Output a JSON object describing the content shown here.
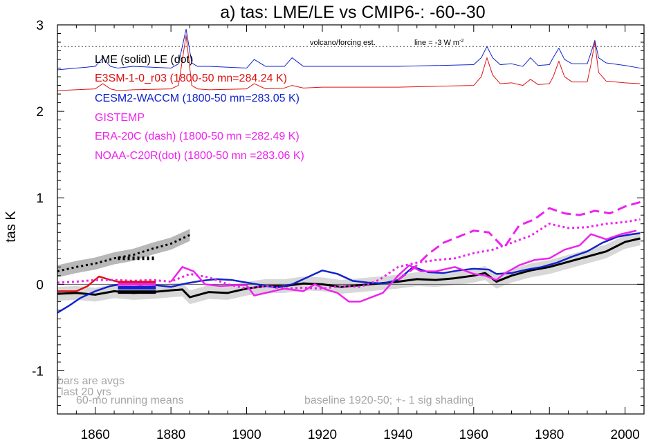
{
  "chart_data": {
    "type": "line",
    "title": "a) tas: LME/LE vs CMIP6-: -60--30",
    "xlabel": "",
    "ylabel": "tas K",
    "xlim": [
      1850,
      2005
    ],
    "ylim": [
      -1.5,
      3.0
    ],
    "x_ticks": [
      1860,
      1880,
      1900,
      1920,
      1940,
      1960,
      1980,
      2000
    ],
    "y_ticks": [
      -1,
      0,
      1,
      2,
      3
    ],
    "x_tick_labels": [
      "1860",
      "1880",
      "1900",
      "1920",
      "1940",
      "1960",
      "1980",
      "2000"
    ],
    "y_tick_labels": [
      "-1",
      "0",
      "1",
      "2",
      "3"
    ],
    "grid": false,
    "legend": {
      "placement": "top-left",
      "entries": [
        {
          "text": "LME (solid)   LE (dot)",
          "color": "#000000"
        },
        {
          "text": "E3SM-1-0_r03 (1800-50 mn=284.24 K)",
          "color": "#dd1111"
        },
        {
          "text": "CESM2-WACCM (1800-50 mn=283.05 K)",
          "color": "#1122cc"
        },
        {
          "text": "GISTEMP",
          "color": "#ee22ee"
        },
        {
          "text": "ERA-20C (dash) (1800-50 mn =282.49 K)",
          "color": "#ee22ee"
        },
        {
          "text": "NOAA-C20R(dot) (1800-50 mn =283.06 K)",
          "color": "#ee22ee"
        }
      ]
    },
    "annotations": {
      "volcano": "volcano/forcing est.",
      "line_note_prefix": "line = -3 W m",
      "line_note_sup": "-2",
      "bars_note": [
        "bars are avgs",
        "last 20 yrs"
      ],
      "running_note": "60-mo running means",
      "baseline_note": "baseline 1920-50; +- 1 sig shading"
    },
    "reference_lines": {
      "zero": 0,
      "volcano_line": 2.75
    },
    "series": [
      {
        "name": "LME (solid)",
        "color": "#000000",
        "style": "solid",
        "width": 3,
        "x": [
          1850,
          1855,
          1860,
          1865,
          1870,
          1875,
          1880,
          1883,
          1885,
          1890,
          1895,
          1900,
          1905,
          1910,
          1915,
          1920,
          1925,
          1930,
          1935,
          1940,
          1945,
          1950,
          1955,
          1960,
          1963,
          1966,
          1970,
          1975,
          1980,
          1985,
          1990,
          1995,
          2000,
          2004
        ],
        "y": [
          -0.11,
          -0.1,
          -0.12,
          -0.08,
          -0.1,
          -0.09,
          -0.07,
          -0.06,
          -0.15,
          -0.09,
          -0.1,
          -0.05,
          -0.02,
          -0.02,
          0.01,
          0.0,
          -0.03,
          -0.01,
          0.01,
          0.03,
          0.06,
          0.05,
          0.07,
          0.1,
          0.13,
          0.03,
          0.1,
          0.16,
          0.2,
          0.26,
          0.32,
          0.38,
          0.49,
          0.53
        ]
      },
      {
        "name": "LE (dot)",
        "color": "#000000",
        "style": "dot",
        "width": 3,
        "x": [
          1850,
          1855,
          1860,
          1865,
          1870,
          1875,
          1880,
          1885
        ],
        "y": [
          0.15,
          0.2,
          0.24,
          0.3,
          0.34,
          0.41,
          0.47,
          0.57
        ]
      },
      {
        "name": "E3SM-1-0_r03",
        "color": "#dd1111",
        "style": "solid",
        "width": 2.5,
        "x": [
          1850,
          1855,
          1858,
          1861,
          1864,
          1868,
          1872,
          1875
        ],
        "y": [
          -0.08,
          -0.08,
          -0.02,
          0.09,
          0.05,
          0.01,
          -0.01,
          0.01
        ]
      },
      {
        "name": "CESM2-WACCM",
        "color": "#1122cc",
        "style": "solid",
        "width": 2.5,
        "x": [
          1850,
          1853,
          1856,
          1860,
          1864,
          1868,
          1872,
          1876,
          1880,
          1884,
          1888,
          1892,
          1896,
          1900,
          1904,
          1908,
          1912,
          1916,
          1920,
          1924,
          1928,
          1932,
          1936,
          1940,
          1944,
          1948,
          1952,
          1956,
          1960,
          1964,
          1966,
          1970,
          1974,
          1978,
          1982,
          1986,
          1990,
          1994,
          1998,
          2002,
          2004
        ],
        "y": [
          -0.33,
          -0.25,
          -0.16,
          -0.08,
          -0.02,
          0.01,
          0.0,
          -0.01,
          -0.03,
          0.01,
          0.04,
          0.06,
          0.05,
          0.02,
          -0.01,
          -0.04,
          0.0,
          0.08,
          0.16,
          0.12,
          0.04,
          0.02,
          0.01,
          0.05,
          0.2,
          0.14,
          0.13,
          0.16,
          0.18,
          0.17,
          0.12,
          0.13,
          0.17,
          0.2,
          0.25,
          0.32,
          0.38,
          0.48,
          0.55,
          0.58,
          0.59
        ]
      },
      {
        "name": "GISTEMP",
        "color": "#ee22ee",
        "style": "solid",
        "width": 2.5,
        "x": [
          1880,
          1883,
          1886,
          1889,
          1893,
          1897,
          1900,
          1902,
          1905,
          1910,
          1915,
          1918,
          1921,
          1924,
          1927,
          1930,
          1933,
          1936,
          1940,
          1943,
          1946,
          1950,
          1955,
          1960,
          1963,
          1966,
          1968,
          1972,
          1976,
          1980,
          1984,
          1988,
          1991,
          1995,
          1999,
          2003
        ],
        "y": [
          0.03,
          0.2,
          0.15,
          0.0,
          -0.02,
          -0.01,
          -0.01,
          -0.13,
          -0.1,
          -0.05,
          -0.08,
          0.0,
          -0.06,
          -0.1,
          -0.2,
          -0.2,
          -0.15,
          -0.1,
          0.1,
          0.22,
          0.15,
          0.15,
          0.2,
          0.12,
          0.1,
          0.05,
          0.12,
          0.22,
          0.28,
          0.3,
          0.4,
          0.45,
          0.58,
          0.52,
          0.58,
          0.62
        ]
      },
      {
        "name": "ERA-20C (dash)",
        "color": "#ee22ee",
        "style": "dash",
        "width": 3,
        "x": [
          1940,
          1944,
          1948,
          1952,
          1956,
          1960,
          1964,
          1968,
          1972,
          1976,
          1980,
          1984,
          1988,
          1992,
          1996,
          2000,
          2004
        ],
        "y": [
          0.05,
          0.18,
          0.35,
          0.48,
          0.55,
          0.62,
          0.6,
          0.42,
          0.68,
          0.75,
          0.88,
          0.82,
          0.8,
          0.85,
          0.82,
          0.9,
          0.95
        ]
      },
      {
        "name": "NOAA-C20R(dot)",
        "color": "#ee22ee",
        "style": "dot",
        "width": 3,
        "x": [
          1850,
          1855,
          1860,
          1865,
          1870,
          1875,
          1880,
          1885,
          1890,
          1895,
          1900,
          1905,
          1910,
          1915,
          1920,
          1925,
          1930,
          1935,
          1940,
          1945,
          1950,
          1955,
          1960,
          1965,
          1970,
          1975,
          1980,
          1985,
          1990,
          1995,
          2000,
          2004
        ],
        "y": [
          0.02,
          0.03,
          0.05,
          0.05,
          0.04,
          0.05,
          0.03,
          0.12,
          0.08,
          0.0,
          -0.05,
          -0.02,
          -0.05,
          -0.04,
          -0.05,
          -0.02,
          -0.03,
          0.05,
          0.2,
          0.25,
          0.28,
          0.3,
          0.36,
          0.4,
          0.48,
          0.56,
          0.7,
          0.65,
          0.66,
          0.7,
          0.72,
          0.75
        ]
      },
      {
        "name": "E3SM volcanic",
        "color": "#dd1111",
        "style": "solid",
        "width": 1,
        "x": [
          1850,
          1860,
          1862,
          1864,
          1866,
          1870,
          1880,
          1882,
          1884,
          1885.5,
          1887,
          1890,
          1900,
          1902,
          1905,
          1910,
          1912,
          1915,
          1920,
          1940,
          1960,
          1962,
          1963.5,
          1965,
          1967,
          1970,
          1973,
          1975,
          1977,
          1980,
          1981,
          1982.5,
          1984,
          1986,
          1990,
          1991,
          1992,
          1993,
          1995,
          2000,
          2004
        ],
        "y": [
          2.24,
          2.26,
          2.32,
          2.26,
          2.24,
          2.25,
          2.26,
          2.3,
          2.88,
          2.3,
          2.26,
          2.25,
          2.26,
          2.32,
          2.26,
          2.27,
          2.3,
          2.27,
          2.28,
          2.28,
          2.3,
          2.4,
          2.62,
          2.42,
          2.32,
          2.33,
          2.3,
          2.37,
          2.31,
          2.32,
          2.4,
          2.58,
          2.4,
          2.34,
          2.34,
          2.55,
          2.8,
          2.45,
          2.35,
          2.33,
          2.32
        ]
      },
      {
        "name": "CESM2 volcanic",
        "color": "#1122cc",
        "style": "solid",
        "width": 1,
        "x": [
          1850,
          1855,
          1860,
          1862,
          1864,
          1866,
          1870,
          1880,
          1882,
          1884,
          1885.5,
          1887,
          1890,
          1900,
          1902,
          1905,
          1910,
          1912,
          1915,
          1920,
          1940,
          1960,
          1962,
          1963.5,
          1965,
          1967,
          1970,
          1973,
          1975,
          1977,
          1980,
          1981,
          1982.5,
          1984,
          1986,
          1990,
          1991,
          1992,
          1993,
          1995,
          2000,
          2004
        ],
        "y": [
          2.48,
          2.5,
          2.52,
          2.62,
          2.52,
          2.5,
          2.52,
          2.5,
          2.55,
          2.95,
          2.56,
          2.52,
          2.52,
          2.5,
          2.6,
          2.52,
          2.52,
          2.62,
          2.52,
          2.52,
          2.52,
          2.54,
          2.62,
          2.75,
          2.62,
          2.54,
          2.55,
          2.52,
          2.62,
          2.53,
          2.54,
          2.62,
          2.73,
          2.6,
          2.55,
          2.55,
          2.68,
          2.82,
          2.62,
          2.56,
          2.53,
          2.5
        ]
      }
    ],
    "shading": {
      "name": "LME +- 1 sig",
      "color": "#d8d8d8",
      "x": [
        1850,
        1855,
        1860,
        1865,
        1870,
        1875,
        1880,
        1883,
        1885,
        1890,
        1895,
        1900,
        1905,
        1910,
        1915,
        1920,
        1925,
        1930,
        1935,
        1940,
        1945,
        1950,
        1955,
        1960,
        1963,
        1966,
        1970,
        1975,
        1980,
        1985,
        1990,
        1995,
        2000,
        2004
      ],
      "y_low": [
        -0.19,
        -0.18,
        -0.2,
        -0.16,
        -0.18,
        -0.17,
        -0.15,
        -0.14,
        -0.23,
        -0.17,
        -0.18,
        -0.13,
        -0.1,
        -0.1,
        -0.07,
        -0.08,
        -0.11,
        -0.09,
        -0.07,
        -0.05,
        -0.02,
        -0.03,
        -0.01,
        0.02,
        0.05,
        -0.05,
        0.02,
        0.08,
        0.12,
        0.18,
        0.24,
        0.3,
        0.41,
        0.45
      ],
      "y_high": [
        -0.03,
        -0.02,
        -0.04,
        0.0,
        -0.02,
        -0.01,
        0.01,
        0.02,
        -0.07,
        -0.01,
        -0.02,
        0.03,
        0.06,
        0.06,
        0.09,
        0.08,
        0.05,
        0.07,
        0.09,
        0.11,
        0.14,
        0.13,
        0.15,
        0.18,
        0.21,
        0.11,
        0.18,
        0.24,
        0.28,
        0.34,
        0.4,
        0.46,
        0.57,
        0.61
      ]
    },
    "le_shading": {
      "color": "#b8b8b8",
      "x": [
        1850,
        1855,
        1860,
        1865,
        1870,
        1875,
        1880,
        1885
      ],
      "y_low": [
        0.08,
        0.13,
        0.17,
        0.23,
        0.27,
        0.34,
        0.4,
        0.5
      ],
      "y_high": [
        0.22,
        0.27,
        0.31,
        0.37,
        0.41,
        0.48,
        0.54,
        0.64
      ]
    },
    "bars": [
      {
        "name": "LE avg last 20 yrs",
        "color": "#000000",
        "style": "dot",
        "x0": 1866,
        "x1": 1876,
        "y": 0.3,
        "width": 5
      },
      {
        "name": "E3SM avg last 20 yrs",
        "color": "#dd1111",
        "style": "solid",
        "x0": 1866,
        "x1": 1876,
        "y": 0.02,
        "width": 5
      },
      {
        "name": "GISTEMP/NOAA avg last 20 yrs",
        "color": "#ee22ee",
        "style": "solid",
        "x0": 1866,
        "x1": 1876,
        "y": 0.0,
        "width": 4
      },
      {
        "name": "CESM2 avg last 20 yrs",
        "color": "#1122cc",
        "style": "solid",
        "x0": 1866,
        "x1": 1876,
        "y": -0.04,
        "width": 5
      },
      {
        "name": "LME avg last 20 yrs",
        "color": "#000000",
        "style": "solid",
        "x0": 1866,
        "x1": 1876,
        "y": -0.09,
        "width": 5
      }
    ]
  }
}
